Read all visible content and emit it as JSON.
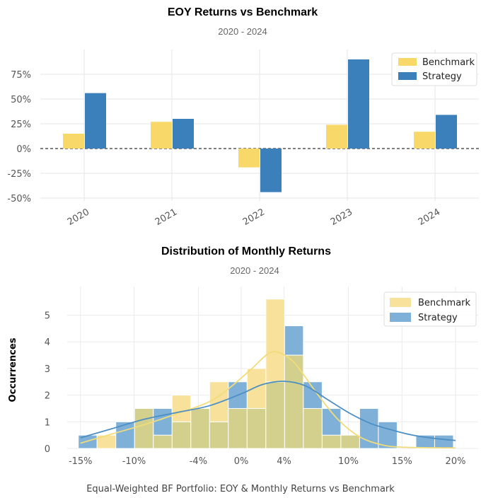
{
  "colors": {
    "benchmark": "#f7d868",
    "strategy": "#3b7fbb",
    "benchmark_kde": "#f2dc7a",
    "strategy_kde": "#4d8fc4",
    "overlap": "#d3cf8c"
  },
  "chart_data": [
    {
      "type": "bar",
      "title": "EOY Returns  vs Benchmark",
      "subtitle": "2020 - 2024",
      "categories": [
        "2020",
        "2021",
        "2022",
        "2023",
        "2024"
      ],
      "series": [
        {
          "name": "Benchmark",
          "values": [
            15,
            27,
            -19,
            24,
            17
          ]
        },
        {
          "name": "Strategy",
          "values": [
            56,
            30,
            -44,
            90,
            34
          ]
        }
      ],
      "yticks": [
        75,
        50,
        25,
        0,
        -25,
        -50
      ],
      "ytick_labels": [
        "75%",
        "50%",
        "25%",
        "0%",
        "-25%",
        "-50%"
      ],
      "ylim": [
        -50,
        100
      ],
      "legend": "top-right",
      "grid": true
    },
    {
      "type": "histogram",
      "title": "Distribution of Monthly Returns",
      "subtitle": "2020 - 2024",
      "ylabel": "Occurrences",
      "xticks": [
        -15,
        -10,
        -4,
        0,
        4,
        10,
        15,
        20
      ],
      "xtick_labels": [
        "-15%",
        "-10%",
        "-4%",
        "0%",
        "4%",
        "10%",
        "15%",
        "20%"
      ],
      "yticks": [
        0,
        1,
        2,
        3,
        4,
        5
      ],
      "ylim": [
        0,
        5.6
      ],
      "bin_edges": [
        -15.2,
        -13.45,
        -11.7,
        -9.95,
        -8.2,
        -6.45,
        -4.7,
        -2.95,
        -1.2,
        0.55,
        2.3,
        4.05,
        5.8,
        7.55,
        9.3,
        11.05,
        12.8,
        14.55,
        16.3,
        18.05,
        19.8
      ],
      "series": [
        {
          "name": "Benchmark",
          "counts": [
            0,
            0.5,
            0,
            1.5,
            0.5,
            2,
            1.5,
            2.5,
            1.5,
            3,
            5.6,
            3.5,
            1.5,
            0.5,
            0.5,
            0,
            0,
            0,
            0,
            0
          ]
        },
        {
          "name": "Strategy",
          "counts": [
            0.5,
            0,
            1,
            1.5,
            1.5,
            1,
            1.5,
            1,
            2.5,
            1.5,
            2.5,
            4.6,
            2.5,
            1.5,
            0.5,
            1.5,
            1,
            0,
            0.5,
            0.5
          ]
        }
      ],
      "kde": [
        {
          "name": "Benchmark",
          "points": [
            [
              -15,
              0.2
            ],
            [
              -12,
              0.55
            ],
            [
              -9,
              0.9
            ],
            [
              -6,
              1.3
            ],
            [
              -3,
              1.75
            ],
            [
              -1,
              2.3
            ],
            [
              1,
              3.0
            ],
            [
              2.5,
              3.55
            ],
            [
              3.5,
              3.6
            ],
            [
              5,
              3.2
            ],
            [
              7,
              2.1
            ],
            [
              9,
              1.1
            ],
            [
              11,
              0.45
            ],
            [
              13,
              0.15
            ],
            [
              15,
              0.05
            ],
            [
              20,
              0.02
            ]
          ]
        },
        {
          "name": "Strategy",
          "points": [
            [
              -15,
              0.4
            ],
            [
              -12,
              0.75
            ],
            [
              -9,
              1.1
            ],
            [
              -6,
              1.35
            ],
            [
              -3,
              1.6
            ],
            [
              0,
              2.05
            ],
            [
              2,
              2.4
            ],
            [
              4,
              2.52
            ],
            [
              6,
              2.35
            ],
            [
              8,
              1.85
            ],
            [
              10,
              1.35
            ],
            [
              12,
              0.95
            ],
            [
              14,
              0.7
            ],
            [
              16,
              0.5
            ],
            [
              18,
              0.38
            ],
            [
              20,
              0.3
            ]
          ]
        }
      ],
      "legend": "top-right",
      "grid": true
    }
  ],
  "caption": "Equal-Weighted BF Portfolio: EOY & Monthly Returns vs Benchmark"
}
